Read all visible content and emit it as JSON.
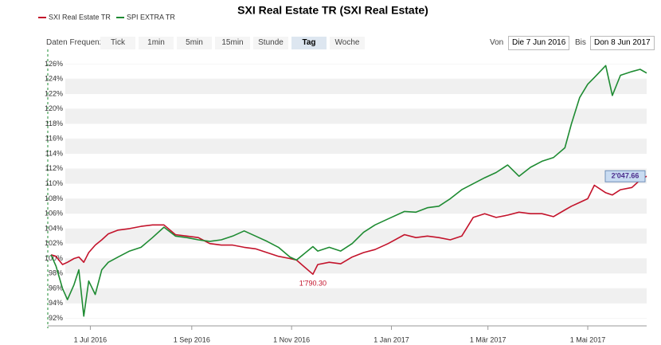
{
  "chart_data": {
    "type": "line",
    "title": "SXI Real Estate TR (SXI Real Estate)",
    "x": [
      "2016-06-07",
      "2016-06-10",
      "2016-06-14",
      "2016-06-17",
      "2016-06-21",
      "2016-06-24",
      "2016-06-27",
      "2016-06-30",
      "2016-07-04",
      "2016-07-08",
      "2016-07-12",
      "2016-07-18",
      "2016-07-25",
      "2016-08-01",
      "2016-08-08",
      "2016-08-15",
      "2016-08-22",
      "2016-08-29",
      "2016-09-05",
      "2016-09-12",
      "2016-09-19",
      "2016-09-26",
      "2016-10-03",
      "2016-10-10",
      "2016-10-17",
      "2016-10-24",
      "2016-10-31",
      "2016-11-04",
      "2016-11-14",
      "2016-11-17",
      "2016-11-24",
      "2016-12-01",
      "2016-12-08",
      "2016-12-15",
      "2016-12-22",
      "2016-12-30",
      "2017-01-09",
      "2017-01-16",
      "2017-01-23",
      "2017-01-30",
      "2017-02-06",
      "2017-02-13",
      "2017-02-20",
      "2017-02-27",
      "2017-03-06",
      "2017-03-13",
      "2017-03-20",
      "2017-03-27",
      "2017-04-03",
      "2017-04-10",
      "2017-04-17",
      "2017-04-21",
      "2017-04-26",
      "2017-05-01",
      "2017-05-05",
      "2017-05-12",
      "2017-05-16",
      "2017-05-21",
      "2017-05-28",
      "2017-06-02",
      "2017-06-06"
    ],
    "series": [
      {
        "name": "SXI Real Estate TR",
        "color": "#c3132b",
        "values": [
          100.5,
          100.3,
          99.2,
          99.5,
          100,
          100.2,
          99.5,
          100.8,
          101.8,
          102.5,
          103.3,
          103.8,
          104,
          104.3,
          104.5,
          104.5,
          103.2,
          103,
          102.8,
          102,
          101.8,
          101.8,
          101.5,
          101.3,
          100.8,
          100.3,
          100,
          99.8,
          97.9,
          99.2,
          99.5,
          99.3,
          100.2,
          100.8,
          101.2,
          102,
          103.2,
          102.8,
          103,
          102.8,
          102.5,
          103,
          105.5,
          106,
          105.5,
          105.8,
          106.2,
          106,
          106,
          105.6,
          106.5,
          107,
          107.5,
          108,
          109.8,
          108.8,
          108.5,
          109.2,
          109.5,
          110.5,
          111
        ]
      },
      {
        "name": "SPI EXTRA TR",
        "color": "#1e8b32",
        "values": [
          100.5,
          99,
          96,
          94.5,
          96.5,
          98.5,
          92.3,
          97,
          95.2,
          98.5,
          99.5,
          100.2,
          101,
          101.5,
          102.8,
          104.2,
          103,
          102.8,
          102.5,
          102.3,
          102.5,
          103,
          103.7,
          103,
          102.3,
          101.5,
          100.2,
          99.8,
          101.6,
          101,
          101.5,
          101,
          102,
          103.5,
          104.5,
          105.3,
          106.3,
          106.2,
          106.8,
          107,
          108,
          109.2,
          110,
          110.8,
          111.5,
          112.5,
          111,
          112.2,
          113,
          113.5,
          114.8,
          118,
          121.5,
          123.3,
          124.2,
          125.8,
          121.8,
          124.5,
          125,
          125.3,
          124.8
        ]
      }
    ],
    "xlim": [
      "2016-06-05",
      "2017-06-06"
    ],
    "xticks": [
      {
        "value": "2016-07-01",
        "label": "1 Jul 2016"
      },
      {
        "value": "2016-09-01",
        "label": "1 Sep 2016"
      },
      {
        "value": "2016-11-01",
        "label": "1 Nov 2016"
      },
      {
        "value": "2017-01-01",
        "label": "1 Jan 2017"
      },
      {
        "value": "2017-03-01",
        "label": "1 Mär 2017"
      },
      {
        "value": "2017-05-01",
        "label": "1 Mai 2017"
      }
    ],
    "ylim": [
      91,
      127
    ],
    "yticks": [
      {
        "value": 92,
        "label": "92%"
      },
      {
        "value": 94,
        "label": "94%"
      },
      {
        "value": 96,
        "label": "96%"
      },
      {
        "value": 98,
        "label": "98%"
      },
      {
        "value": 100,
        "label": "100%"
      },
      {
        "value": 102,
        "label": "102%"
      },
      {
        "value": 104,
        "label": "104%"
      },
      {
        "value": 106,
        "label": "106%"
      },
      {
        "value": 108,
        "label": "108%"
      },
      {
        "value": 110,
        "label": "110%"
      },
      {
        "value": 112,
        "label": "112%"
      },
      {
        "value": 114,
        "label": "114%"
      },
      {
        "value": 116,
        "label": "116%"
      },
      {
        "value": 118,
        "label": "118%"
      },
      {
        "value": 120,
        "label": "120%"
      },
      {
        "value": 122,
        "label": "122%"
      },
      {
        "value": 124,
        "label": "124%"
      },
      {
        "value": 126,
        "label": "126%"
      }
    ],
    "grid": true,
    "annotations": [
      {
        "text": "1'790.30",
        "x": "2016-11-14",
        "y": 97.9,
        "series": 0
      },
      {
        "text": "2'047.66",
        "x": "2017-06-06",
        "y": 111,
        "series": 0
      }
    ]
  },
  "controls": {
    "frequency_label": "Daten Frequenz",
    "buttons": [
      "Tick",
      "1min",
      "5min",
      "15min",
      "Stunde",
      "Tag",
      "Woche"
    ],
    "active": "Tag",
    "from_label": "Von",
    "from": "Die 7 Jun 2016",
    "to_label": "Bis",
    "to": "Don 8 Jun 2017"
  }
}
